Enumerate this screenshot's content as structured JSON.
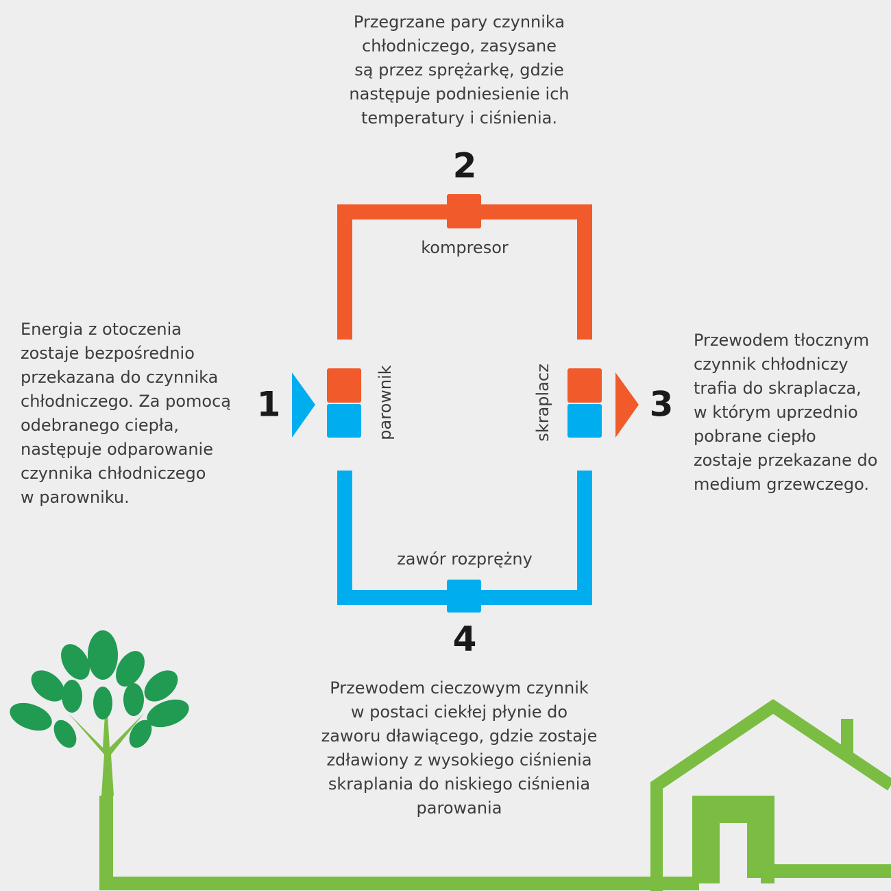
{
  "steps": [
    {
      "number": "1",
      "lines": [
        "Energia z otoczenia",
        "zostaje bezpośrednio",
        "przekazana do czynnika",
        "chłodniczego. Za pomocą",
        "odebranego ciepła,",
        "następuje odparowanie",
        "czynnika chłodniczego",
        "w parowniku."
      ]
    },
    {
      "number": "2",
      "lines": [
        "Przegrzane pary czynnika",
        "chłodniczego, zasysane",
        "są przez sprężarkę, gdzie",
        "następuje podniesienie ich",
        "temperatury i ciśnienia."
      ]
    },
    {
      "number": "3",
      "lines": [
        "Przewodem tłocznym",
        "czynnik chłodniczy",
        "trafia do skraplacza,",
        "w którym uprzednio",
        "pobrane ciepło",
        "zostaje przekazane do",
        "medium grzewczego."
      ]
    },
    {
      "number": "4",
      "lines": [
        "Przewodem cieczowym czynnik",
        "w postaci ciekłej płynie do",
        "zaworu dławiącego, gdzie zostaje",
        "zdławiony z wysokiego ciśnienia",
        "skraplania do niskiego ciśnienia",
        "parowania"
      ]
    }
  ],
  "labels": {
    "compressor": "kompresor",
    "evaporator": "parownik",
    "condenser": "skraplacz",
    "valve": "zawór rozprężny"
  }
}
